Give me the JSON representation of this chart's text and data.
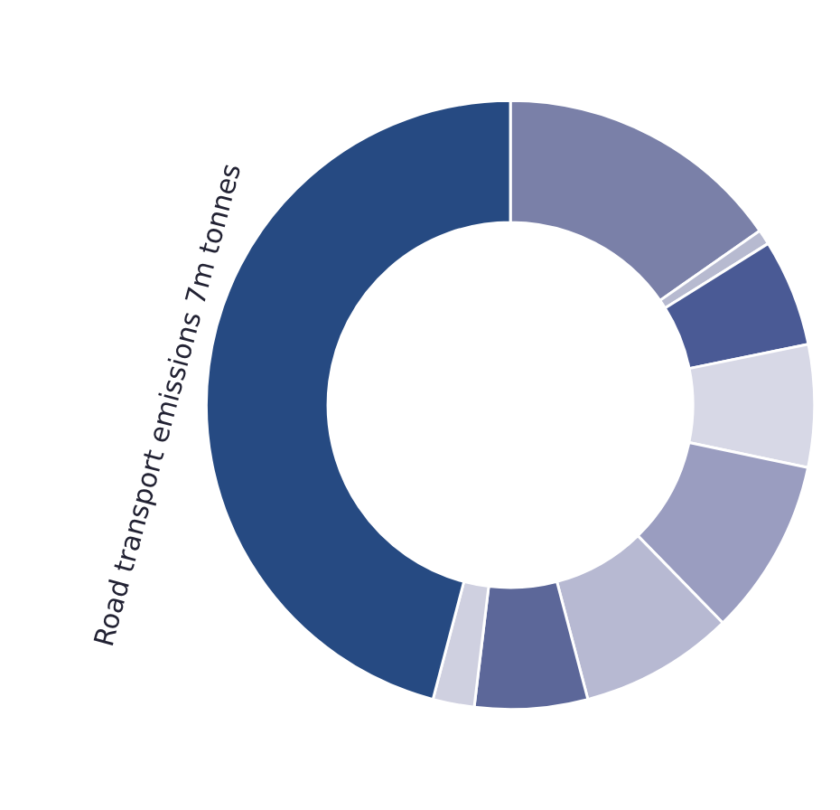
{
  "chart_data": {
    "type": "donut",
    "categories": [
      null,
      null,
      null,
      null,
      null,
      null,
      null,
      null,
      null
    ],
    "values": [
      15.3,
      0.8,
      5.7,
      6.5,
      9.4,
      8.2,
      6.0,
      2.2,
      45.9
    ],
    "colors": [
      "#7a80a8",
      "#b7bad0",
      "#4a5a95",
      "#d7d8e6",
      "#9a9dc0",
      "#b7b9d2",
      "#5c6799",
      "#cfd0e0",
      "#264a82"
    ],
    "annotations": [
      "Road transport emissions 7m tonnes"
    ],
    "legend": false
  }
}
